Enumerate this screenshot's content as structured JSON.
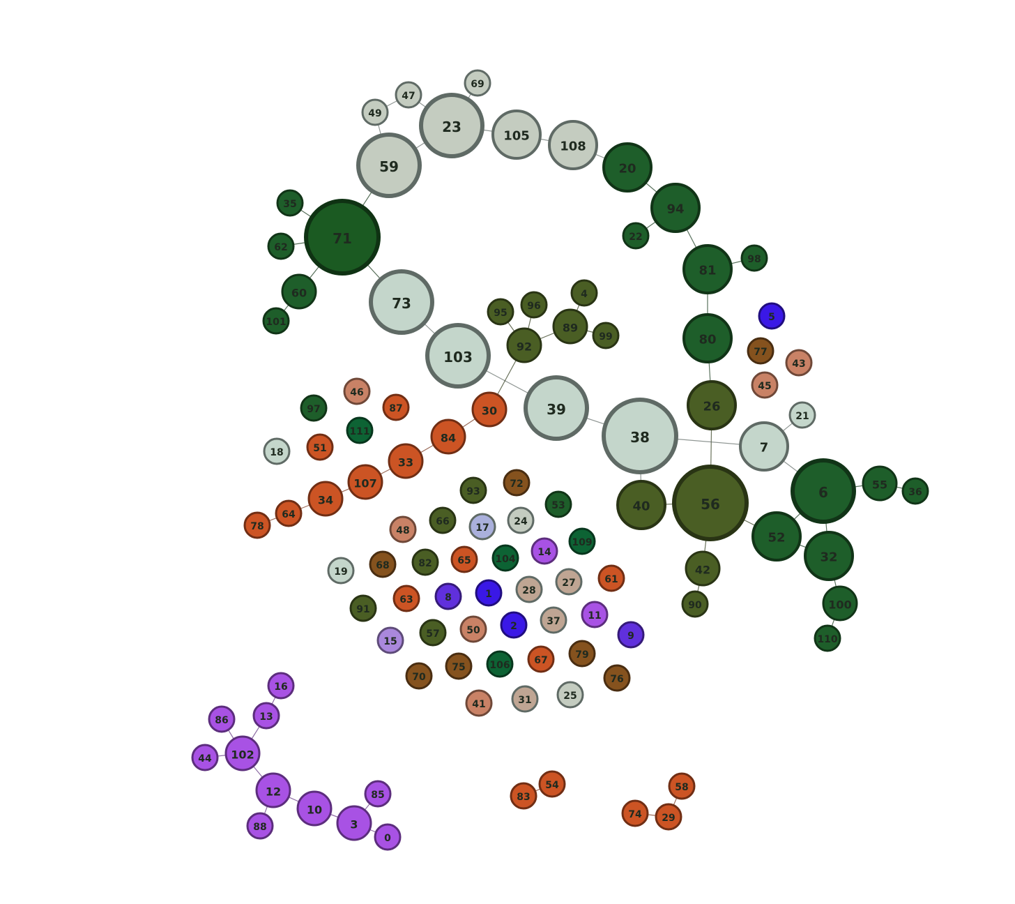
{
  "palette": {
    "dark_green": "#1e5e2a",
    "darker_green": "#1b5a22",
    "olive": "#4a5e24",
    "pale_gray": "#c4ccc0",
    "pale_mint": "#c4d6cb",
    "orange": "#cc5424",
    "salmon": "#c98266",
    "brown": "#85521e",
    "tan": "#bfa593",
    "blue": "#3a18e6",
    "violet": "#6030dc",
    "purple": "#a852e4",
    "lavender": "#aab0dc",
    "teal_green": "#0d6334"
  },
  "nodes": [
    {
      "id": "71",
      "label": "71",
      "color": "#1b5a22",
      "size": "xl"
    },
    {
      "id": "59",
      "label": "59",
      "color": "#c4ccc0",
      "size": "l"
    },
    {
      "id": "23",
      "label": "23",
      "color": "#c4ccc0",
      "size": "l"
    },
    {
      "id": "105",
      "label": "105",
      "color": "#c4ccc0",
      "size": "m"
    },
    {
      "id": "108",
      "label": "108",
      "color": "#c4ccc0",
      "size": "m"
    },
    {
      "id": "20",
      "label": "20",
      "color": "#1e5e2a",
      "size": "m"
    },
    {
      "id": "94",
      "label": "94",
      "color": "#1e5e2a",
      "size": "m"
    },
    {
      "id": "81",
      "label": "81",
      "color": "#1e5e2a",
      "size": "m"
    },
    {
      "id": "80",
      "label": "80",
      "color": "#1e5e2a",
      "size": "m"
    },
    {
      "id": "26",
      "label": "26",
      "color": "#4a5e24",
      "size": "m"
    },
    {
      "id": "56",
      "label": "56",
      "color": "#4a5e24",
      "size": "xl"
    },
    {
      "id": "73",
      "label": "73",
      "color": "#c4d6cb",
      "size": "l"
    },
    {
      "id": "103",
      "label": "103",
      "color": "#c4d6cb",
      "size": "l"
    },
    {
      "id": "39",
      "label": "39",
      "color": "#c4d6cb",
      "size": "l"
    },
    {
      "id": "38",
      "label": "38",
      "color": "#c4d6cb",
      "size": "xl"
    },
    {
      "id": "7",
      "label": "7",
      "color": "#c4d6cb",
      "size": "m"
    },
    {
      "id": "6",
      "label": "6",
      "color": "#1e5e2a",
      "size": "l"
    },
    {
      "id": "52",
      "label": "52",
      "color": "#1e5e2a",
      "size": "m"
    },
    {
      "id": "32",
      "label": "32",
      "color": "#1e5e2a",
      "size": "m"
    },
    {
      "id": "40",
      "label": "40",
      "color": "#4a5e24",
      "size": "m"
    },
    {
      "id": "92",
      "label": "92",
      "color": "#4a5e24",
      "size": "s"
    },
    {
      "id": "89",
      "label": "89",
      "color": "#4a5e24",
      "size": "s"
    },
    {
      "id": "55",
      "label": "55",
      "color": "#1e5e2a",
      "size": "s"
    },
    {
      "id": "42",
      "label": "42",
      "color": "#4a5e24",
      "size": "s"
    },
    {
      "id": "100",
      "label": "100",
      "color": "#1e5e2a",
      "size": "s"
    },
    {
      "id": "60",
      "label": "60",
      "color": "#1e5e2a",
      "size": "s"
    },
    {
      "id": "30",
      "label": "30",
      "color": "#cc5424",
      "size": "s"
    },
    {
      "id": "84",
      "label": "84",
      "color": "#cc5424",
      "size": "s"
    },
    {
      "id": "33",
      "label": "33",
      "color": "#cc5424",
      "size": "s"
    },
    {
      "id": "107",
      "label": "107",
      "color": "#cc5424",
      "size": "s"
    },
    {
      "id": "34",
      "label": "34",
      "color": "#cc5424",
      "size": "s"
    },
    {
      "id": "64",
      "label": "64",
      "color": "#cc5424",
      "size": "xs"
    },
    {
      "id": "78",
      "label": "78",
      "color": "#cc5424",
      "size": "xs"
    },
    {
      "id": "102",
      "label": "102",
      "color": "#a852e4",
      "size": "s"
    },
    {
      "id": "12",
      "label": "12",
      "color": "#a852e4",
      "size": "s"
    },
    {
      "id": "10",
      "label": "10",
      "color": "#a852e4",
      "size": "s"
    },
    {
      "id": "3",
      "label": "3",
      "color": "#a852e4",
      "size": "s"
    },
    {
      "id": "13",
      "label": "13",
      "color": "#a852e4",
      "size": "xs"
    },
    {
      "id": "16",
      "label": "16",
      "color": "#a852e4",
      "size": "xs"
    },
    {
      "id": "86",
      "label": "86",
      "color": "#a852e4",
      "size": "xs"
    },
    {
      "id": "44",
      "label": "44",
      "color": "#a852e4",
      "size": "xs"
    },
    {
      "id": "88",
      "label": "88",
      "color": "#a852e4",
      "size": "xs"
    },
    {
      "id": "85",
      "label": "85",
      "color": "#a852e4",
      "size": "xs"
    },
    {
      "id": "0",
      "label": "0",
      "color": "#a852e4",
      "size": "xs"
    },
    {
      "id": "49",
      "label": "49",
      "color": "#c4ccc0",
      "size": "xs"
    },
    {
      "id": "47",
      "label": "47",
      "color": "#c4ccc0",
      "size": "xs"
    },
    {
      "id": "69",
      "label": "69",
      "color": "#c4ccc0",
      "size": "xs"
    },
    {
      "id": "35",
      "label": "35",
      "color": "#1e5e2a",
      "size": "xs"
    },
    {
      "id": "62",
      "label": "62",
      "color": "#1e5e2a",
      "size": "xs"
    },
    {
      "id": "101",
      "label": "101",
      "color": "#1e5e2a",
      "size": "xs"
    },
    {
      "id": "22",
      "label": "22",
      "color": "#1e5e2a",
      "size": "xs"
    },
    {
      "id": "98",
      "label": "98",
      "color": "#1e5e2a",
      "size": "xs"
    },
    {
      "id": "36",
      "label": "36",
      "color": "#1e5e2a",
      "size": "xs"
    },
    {
      "id": "110",
      "label": "110",
      "color": "#1e5e2a",
      "size": "xs"
    },
    {
      "id": "90",
      "label": "90",
      "color": "#4a5e24",
      "size": "xs"
    },
    {
      "id": "4",
      "label": "4",
      "color": "#4a5e24",
      "size": "xs"
    },
    {
      "id": "95",
      "label": "95",
      "color": "#4a5e24",
      "size": "xs"
    },
    {
      "id": "96",
      "label": "96",
      "color": "#4a5e24",
      "size": "xs"
    },
    {
      "id": "99",
      "label": "99",
      "color": "#4a5e24",
      "size": "xs"
    },
    {
      "id": "21",
      "label": "21",
      "color": "#c4d6cb",
      "size": "xs"
    },
    {
      "id": "5",
      "label": "5",
      "color": "#3a18e6",
      "size": "xs"
    },
    {
      "id": "77",
      "label": "77",
      "color": "#85521e",
      "size": "xs"
    },
    {
      "id": "43",
      "label": "43",
      "color": "#c98266",
      "size": "xs"
    },
    {
      "id": "45",
      "label": "45",
      "color": "#c98266",
      "size": "xs"
    },
    {
      "id": "97",
      "label": "97",
      "color": "#1e5e2a",
      "size": "xs"
    },
    {
      "id": "46",
      "label": "46",
      "color": "#c98266",
      "size": "xs"
    },
    {
      "id": "87",
      "label": "87",
      "color": "#cc5424",
      "size": "xs"
    },
    {
      "id": "111",
      "label": "111",
      "color": "#0d6334",
      "size": "xs"
    },
    {
      "id": "51",
      "label": "51",
      "color": "#cc5424",
      "size": "xs"
    },
    {
      "id": "18",
      "label": "18",
      "color": "#c4d6cb",
      "size": "xs"
    },
    {
      "id": "93",
      "label": "93",
      "color": "#4a5e24",
      "size": "xs"
    },
    {
      "id": "72",
      "label": "72",
      "color": "#85521e",
      "size": "xs"
    },
    {
      "id": "53",
      "label": "53",
      "color": "#1e5e2a",
      "size": "xs"
    },
    {
      "id": "48",
      "label": "48",
      "color": "#c98266",
      "size": "xs"
    },
    {
      "id": "66",
      "label": "66",
      "color": "#4a5e24",
      "size": "xs"
    },
    {
      "id": "17",
      "label": "17",
      "color": "#aab0dc",
      "size": "xs"
    },
    {
      "id": "24",
      "label": "24",
      "color": "#c4ccc0",
      "size": "xs"
    },
    {
      "id": "109",
      "label": "109",
      "color": "#0d6334",
      "size": "xs"
    },
    {
      "id": "14",
      "label": "14",
      "color": "#a852e4",
      "size": "xs"
    },
    {
      "id": "104",
      "label": "104",
      "color": "#0d6334",
      "size": "xs"
    },
    {
      "id": "65",
      "label": "65",
      "color": "#cc5424",
      "size": "xs"
    },
    {
      "id": "82",
      "label": "82",
      "color": "#4a5e24",
      "size": "xs"
    },
    {
      "id": "68",
      "label": "68",
      "color": "#85521e",
      "size": "xs"
    },
    {
      "id": "19",
      "label": "19",
      "color": "#c4d6cb",
      "size": "xs"
    },
    {
      "id": "27",
      "label": "27",
      "color": "#bfa593",
      "size": "xs"
    },
    {
      "id": "61",
      "label": "61",
      "color": "#cc5424",
      "size": "xs"
    },
    {
      "id": "28",
      "label": "28",
      "color": "#bfa593",
      "size": "xs"
    },
    {
      "id": "1",
      "label": "1",
      "color": "#3a18e6",
      "size": "xs"
    },
    {
      "id": "8",
      "label": "8",
      "color": "#6030dc",
      "size": "xs"
    },
    {
      "id": "63",
      "label": "63",
      "color": "#cc5424",
      "size": "xs"
    },
    {
      "id": "91",
      "label": "91",
      "color": "#4a5e24",
      "size": "xs"
    },
    {
      "id": "11",
      "label": "11",
      "color": "#a852e4",
      "size": "xs"
    },
    {
      "id": "37",
      "label": "37",
      "color": "#bfa593",
      "size": "xs"
    },
    {
      "id": "2",
      "label": "2",
      "color": "#3a18e6",
      "size": "xs"
    },
    {
      "id": "9",
      "label": "9",
      "color": "#6030dc",
      "size": "xs"
    },
    {
      "id": "50",
      "label": "50",
      "color": "#c98266",
      "size": "xs"
    },
    {
      "id": "57",
      "label": "57",
      "color": "#4a5e24",
      "size": "xs"
    },
    {
      "id": "15",
      "label": "15",
      "color": "#aa88dc",
      "size": "xs"
    },
    {
      "id": "79",
      "label": "79",
      "color": "#85521e",
      "size": "xs"
    },
    {
      "id": "67",
      "label": "67",
      "color": "#cc5424",
      "size": "xs"
    },
    {
      "id": "106",
      "label": "106",
      "color": "#0d6334",
      "size": "xs"
    },
    {
      "id": "75",
      "label": "75",
      "color": "#85521e",
      "size": "xs"
    },
    {
      "id": "70",
      "label": "70",
      "color": "#85521e",
      "size": "xs"
    },
    {
      "id": "76",
      "label": "76",
      "color": "#85521e",
      "size": "xs"
    },
    {
      "id": "41",
      "label": "41",
      "color": "#c98266",
      "size": "xs"
    },
    {
      "id": "31",
      "label": "31",
      "color": "#bfa593",
      "size": "xs"
    },
    {
      "id": "25",
      "label": "25",
      "color": "#c4ccc0",
      "size": "xs"
    },
    {
      "id": "83",
      "label": "83",
      "color": "#cc5424",
      "size": "xs"
    },
    {
      "id": "54",
      "label": "54",
      "color": "#cc5424",
      "size": "xs"
    },
    {
      "id": "58",
      "label": "58",
      "color": "#cc5424",
      "size": "xs"
    },
    {
      "id": "74",
      "label": "74",
      "color": "#cc5424",
      "size": "xs"
    },
    {
      "id": "29",
      "label": "29",
      "color": "#cc5424",
      "size": "xs"
    }
  ],
  "edges": [
    {
      "source": "71",
      "target": "59"
    },
    {
      "source": "59",
      "target": "23"
    },
    {
      "source": "59",
      "target": "49"
    },
    {
      "source": "49",
      "target": "47"
    },
    {
      "source": "47",
      "target": "23"
    },
    {
      "source": "23",
      "target": "69"
    },
    {
      "source": "23",
      "target": "105"
    },
    {
      "source": "105",
      "target": "108"
    },
    {
      "source": "108",
      "target": "20"
    },
    {
      "source": "20",
      "target": "94"
    },
    {
      "source": "94",
      "target": "22"
    },
    {
      "source": "94",
      "target": "81"
    },
    {
      "source": "81",
      "target": "98"
    },
    {
      "source": "81",
      "target": "80"
    },
    {
      "source": "80",
      "target": "26"
    },
    {
      "source": "26",
      "target": "56"
    },
    {
      "source": "71",
      "target": "35"
    },
    {
      "source": "71",
      "target": "62"
    },
    {
      "source": "71",
      "target": "60"
    },
    {
      "source": "60",
      "target": "101"
    },
    {
      "source": "71",
      "target": "73"
    },
    {
      "source": "73",
      "target": "103"
    },
    {
      "source": "103",
      "target": "39"
    },
    {
      "source": "39",
      "target": "38"
    },
    {
      "source": "38",
      "target": "7"
    },
    {
      "source": "7",
      "target": "21"
    },
    {
      "source": "7",
      "target": "6"
    },
    {
      "source": "38",
      "target": "40"
    },
    {
      "source": "40",
      "target": "56"
    },
    {
      "source": "56",
      "target": "52"
    },
    {
      "source": "56",
      "target": "42"
    },
    {
      "source": "42",
      "target": "90"
    },
    {
      "source": "52",
      "target": "6"
    },
    {
      "source": "6",
      "target": "55"
    },
    {
      "source": "55",
      "target": "36"
    },
    {
      "source": "6",
      "target": "32"
    },
    {
      "source": "52",
      "target": "32"
    },
    {
      "source": "32",
      "target": "100"
    },
    {
      "source": "100",
      "target": "110"
    },
    {
      "source": "92",
      "target": "95"
    },
    {
      "source": "92",
      "target": "96"
    },
    {
      "source": "92",
      "target": "89"
    },
    {
      "source": "89",
      "target": "4"
    },
    {
      "source": "89",
      "target": "99"
    },
    {
      "source": "92",
      "target": "30"
    },
    {
      "source": "30",
      "target": "84"
    },
    {
      "source": "84",
      "target": "33"
    },
    {
      "source": "33",
      "target": "107"
    },
    {
      "source": "107",
      "target": "34"
    },
    {
      "source": "34",
      "target": "64"
    },
    {
      "source": "64",
      "target": "78"
    },
    {
      "source": "102",
      "target": "13"
    },
    {
      "source": "13",
      "target": "16"
    },
    {
      "source": "102",
      "target": "86"
    },
    {
      "source": "102",
      "target": "44"
    },
    {
      "source": "102",
      "target": "12"
    },
    {
      "source": "12",
      "target": "88"
    },
    {
      "source": "12",
      "target": "10"
    },
    {
      "source": "10",
      "target": "3"
    },
    {
      "source": "3",
      "target": "85"
    },
    {
      "source": "3",
      "target": "0"
    },
    {
      "source": "83",
      "target": "54"
    },
    {
      "source": "58",
      "target": "29"
    },
    {
      "source": "74",
      "target": "29"
    }
  ]
}
